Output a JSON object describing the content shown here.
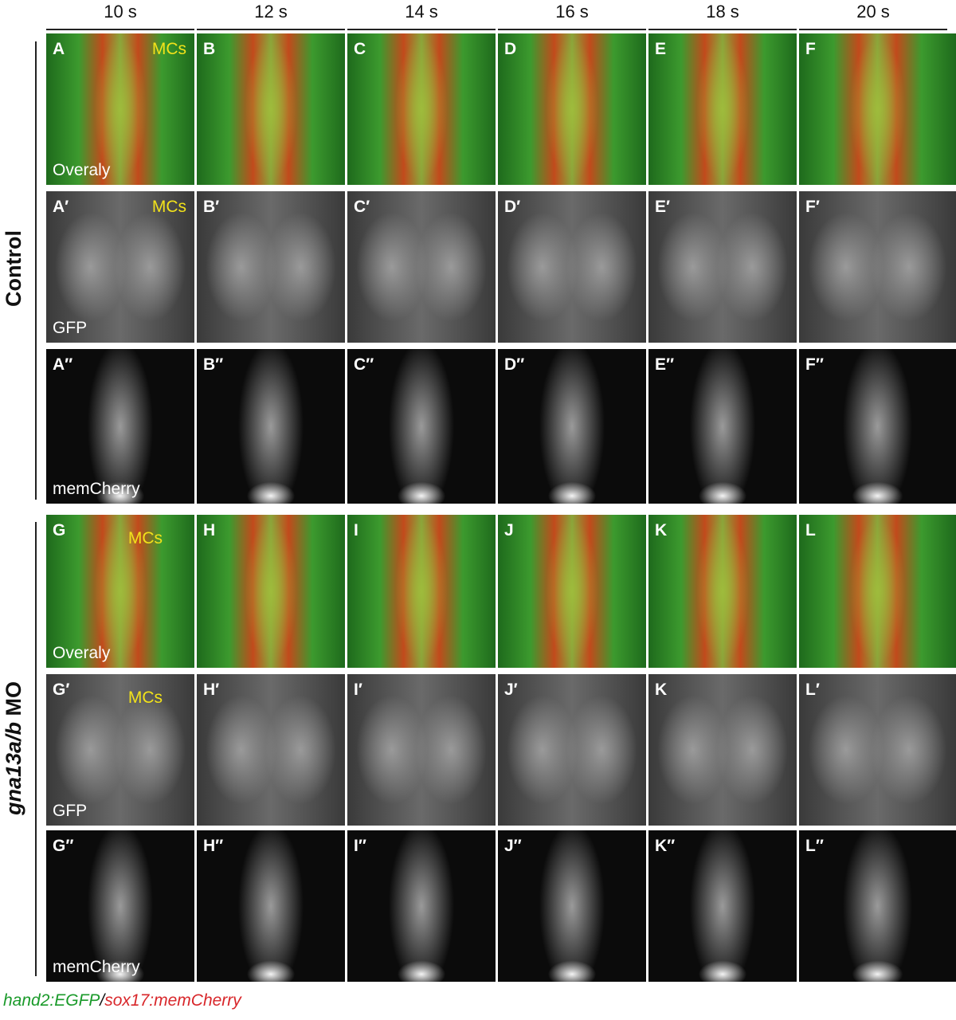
{
  "columns": [
    "10 s",
    "12 s",
    "14 s",
    "16 s",
    "18 s",
    "20 s"
  ],
  "groups": [
    {
      "label": "Control",
      "rows": [
        {
          "channel": "Overaly",
          "note": "MCs",
          "panels": [
            "A",
            "B",
            "C",
            "D",
            "E",
            "F"
          ]
        },
        {
          "channel": "GFP",
          "note": "MCs",
          "panels": [
            "A′",
            "B′",
            "C′",
            "D′",
            "E′",
            "F′"
          ]
        },
        {
          "channel": "memCherry",
          "panels": [
            "A″",
            "B″",
            "C″",
            "D″",
            "E″",
            "F″"
          ]
        }
      ]
    },
    {
      "label_italic": "gna13a/b",
      "label": "MO",
      "rows": [
        {
          "channel": "Overaly",
          "note": "MCs",
          "panels": [
            "G",
            "H",
            "I",
            "J",
            "K",
            "L"
          ]
        },
        {
          "channel": "GFP",
          "note": "MCs",
          "panels": [
            "G′",
            "H′",
            "I′",
            "J′",
            "K",
            "L′"
          ]
        },
        {
          "channel": "memCherry",
          "panels": [
            "G″",
            "H″",
            "I″",
            "J″",
            "K″",
            "L″"
          ]
        }
      ]
    }
  ],
  "legend": {
    "green": "hand2:EGFP",
    "separator": "/",
    "red": "sox17:memCherry"
  }
}
